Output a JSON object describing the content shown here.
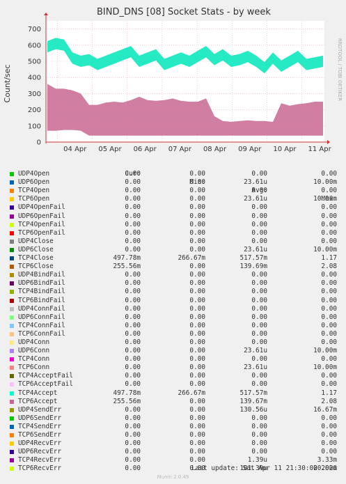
{
  "header": {
    "title": "BIND_DNS [08] Socket Stats - by week",
    "side_label": "RRDTOOL / TOBI OETIKER"
  },
  "chart_data": {
    "type": "area",
    "title": "BIND_DNS [08] Socket Stats - by week",
    "ylabel": "Count/sec",
    "ylim": [
      0,
      750
    ],
    "yticks": [
      0,
      100,
      200,
      300,
      400,
      500,
      600,
      700
    ],
    "x_ticks": [
      "04 Apr",
      "05 Apr",
      "06 Apr",
      "07 Apr",
      "08 Apr",
      "09 Apr",
      "10 Apr",
      "11 Apr"
    ],
    "grid": true,
    "colors": {
      "tcp_band": "#cc7099",
      "udp_line": "#00e6b8",
      "axis": "#cc3333",
      "grid": "#e8b0b0"
    },
    "series": [
      {
        "name": "UDP4Close",
        "color": "#00e6b8",
        "x": [
          "03 Apr 12:00",
          "03 Apr 18:00",
          "04 Apr 00:00",
          "04 Apr 06:00",
          "04 Apr 12:00",
          "04 Apr 18:00",
          "05 Apr 00:00",
          "05 Apr 06:00",
          "05 Apr 12:00",
          "05 Apr 18:00",
          "06 Apr 00:00",
          "06 Apr 06:00",
          "06 Apr 12:00",
          "06 Apr 18:00",
          "07 Apr 00:00",
          "07 Apr 06:00",
          "07 Apr 12:00",
          "07 Apr 18:00",
          "08 Apr 00:00",
          "08 Apr 06:00",
          "08 Apr 12:00",
          "08 Apr 18:00",
          "09 Apr 00:00",
          "09 Apr 06:00",
          "09 Apr 12:00",
          "09 Apr 18:00",
          "10 Apr 00:00",
          "10 Apr 06:00",
          "10 Apr 12:00",
          "10 Apr 18:00",
          "11 Apr 00:00",
          "11 Apr 06:00",
          "11 Apr 12:00",
          "11 Apr 18:00"
        ],
        "values": [
          590,
          610,
          600,
          520,
          500,
          510,
          480,
          500,
          520,
          540,
          560,
          500,
          520,
          540,
          480,
          500,
          520,
          500,
          530,
          560,
          510,
          540,
          500,
          510,
          530,
          500,
          460,
          520,
          470,
          500,
          530,
          480,
          490,
          500
        ]
      },
      {
        "name": "TCP4Close",
        "color": "#cc7099",
        "x": [
          "03 Apr 12:00",
          "03 Apr 18:00",
          "04 Apr 00:00",
          "04 Apr 06:00",
          "04 Apr 12:00",
          "04 Apr 18:00",
          "05 Apr 00:00",
          "05 Apr 06:00",
          "05 Apr 12:00",
          "05 Apr 18:00",
          "06 Apr 00:00",
          "06 Apr 06:00",
          "06 Apr 12:00",
          "06 Apr 18:00",
          "07 Apr 00:00",
          "07 Apr 06:00",
          "07 Apr 12:00",
          "07 Apr 18:00",
          "08 Apr 00:00",
          "08 Apr 06:00",
          "08 Apr 12:00",
          "08 Apr 18:00",
          "09 Apr 00:00",
          "09 Apr 06:00",
          "09 Apr 12:00",
          "09 Apr 18:00",
          "10 Apr 00:00",
          "10 Apr 06:00",
          "10 Apr 12:00",
          "10 Apr 18:00",
          "11 Apr 00:00",
          "11 Apr 06:00",
          "11 Apr 12:00",
          "11 Apr 18:00"
        ],
        "values": [
          360,
          330,
          330,
          320,
          300,
          230,
          230,
          245,
          250,
          245,
          260,
          280,
          260,
          255,
          260,
          270,
          255,
          250,
          250,
          270,
          160,
          130,
          125,
          130,
          135,
          130,
          130,
          125,
          240,
          225,
          235,
          240,
          250,
          250
        ],
        "min": [
          70,
          70,
          75,
          75,
          70,
          40,
          40,
          40,
          40,
          40,
          40,
          40,
          40,
          40,
          40,
          40,
          40,
          40,
          40,
          40,
          40,
          40,
          40,
          40,
          40,
          40,
          40,
          40,
          40,
          40,
          40,
          40,
          40,
          40
        ]
      }
    ]
  },
  "legend": {
    "headers": {
      "cur": "Cur:",
      "min": "Min:",
      "avg": "Avg:",
      "max": "Max:"
    },
    "rows": [
      {
        "name": "UDP4Open",
        "color": "#00cc00",
        "cur": "0.00",
        "min": "0.00",
        "avg": "0.00",
        "max": "0.00"
      },
      {
        "name": "UDP6Open",
        "color": "#0066b3",
        "cur": "0.00",
        "min": "0.00",
        "avg": "23.61u",
        "max": "10.00m"
      },
      {
        "name": "TCP4Open",
        "color": "#ff8000",
        "cur": "0.00",
        "min": "0.00",
        "avg": "0.00",
        "max": "0.00"
      },
      {
        "name": "TCP6Open",
        "color": "#ffcc00",
        "cur": "0.00",
        "min": "0.00",
        "avg": "23.61u",
        "max": "10.00m"
      },
      {
        "name": "UDP4OpenFail",
        "color": "#330099",
        "cur": "0.00",
        "min": "0.00",
        "avg": "0.00",
        "max": "0.00"
      },
      {
        "name": "UDP6OpenFail",
        "color": "#990099",
        "cur": "0.00",
        "min": "0.00",
        "avg": "0.00",
        "max": "0.00"
      },
      {
        "name": "TCP4OpenFail",
        "color": "#ccff00",
        "cur": "0.00",
        "min": "0.00",
        "avg": "0.00",
        "max": "0.00"
      },
      {
        "name": "TCP6OpenFail",
        "color": "#ff0000",
        "cur": "0.00",
        "min": "0.00",
        "avg": "0.00",
        "max": "0.00"
      },
      {
        "name": "UDP4Close",
        "color": "#808080",
        "cur": "0.00",
        "min": "0.00",
        "avg": "0.00",
        "max": "0.00"
      },
      {
        "name": "UDP6Close",
        "color": "#008f00",
        "cur": "0.00",
        "min": "0.00",
        "avg": "23.61u",
        "max": "10.00m"
      },
      {
        "name": "TCP4Close",
        "color": "#00487d",
        "cur": "497.78m",
        "min": "266.67m",
        "avg": "517.57m",
        "max": "1.17"
      },
      {
        "name": "TCP6Close",
        "color": "#b35a00",
        "cur": "255.56m",
        "min": "0.00",
        "avg": "139.69m",
        "max": "2.08"
      },
      {
        "name": "UDP4BindFail",
        "color": "#b38f00",
        "cur": "0.00",
        "min": "0.00",
        "avg": "0.00",
        "max": "0.00"
      },
      {
        "name": "UDP6BindFail",
        "color": "#6b006b",
        "cur": "0.00",
        "min": "0.00",
        "avg": "0.00",
        "max": "0.00"
      },
      {
        "name": "TCP4BindFail",
        "color": "#8fb300",
        "cur": "0.00",
        "min": "0.00",
        "avg": "0.00",
        "max": "0.00"
      },
      {
        "name": "TCP6BindFail",
        "color": "#b30000",
        "cur": "0.00",
        "min": "0.00",
        "avg": "0.00",
        "max": "0.00"
      },
      {
        "name": "UDP4ConnFail",
        "color": "#bebebe",
        "cur": "0.00",
        "min": "0.00",
        "avg": "0.00",
        "max": "0.00"
      },
      {
        "name": "UDP6ConnFail",
        "color": "#80ff80",
        "cur": "0.00",
        "min": "0.00",
        "avg": "0.00",
        "max": "0.00"
      },
      {
        "name": "TCP4ConnFail",
        "color": "#80c9ff",
        "cur": "0.00",
        "min": "0.00",
        "avg": "0.00",
        "max": "0.00"
      },
      {
        "name": "TCP6ConnFail",
        "color": "#ffc080",
        "cur": "0.00",
        "min": "0.00",
        "avg": "0.00",
        "max": "0.00"
      },
      {
        "name": "UDP4Conn",
        "color": "#ffe680",
        "cur": "0.00",
        "min": "0.00",
        "avg": "0.00",
        "max": "0.00"
      },
      {
        "name": "UDP6Conn",
        "color": "#aa80ff",
        "cur": "0.00",
        "min": "0.00",
        "avg": "23.61u",
        "max": "10.00m"
      },
      {
        "name": "TCP4Conn",
        "color": "#ee00cc",
        "cur": "0.00",
        "min": "0.00",
        "avg": "0.00",
        "max": "0.00"
      },
      {
        "name": "TCP6Conn",
        "color": "#ff8080",
        "cur": "0.00",
        "min": "0.00",
        "avg": "23.61u",
        "max": "10.00m"
      },
      {
        "name": "TCP4AcceptFail",
        "color": "#666600",
        "cur": "0.00",
        "min": "0.00",
        "avg": "0.00",
        "max": "0.00"
      },
      {
        "name": "TCP6AcceptFail",
        "color": "#ffbfff",
        "cur": "0.00",
        "min": "0.00",
        "avg": "0.00",
        "max": "0.00"
      },
      {
        "name": "TCP4Accept",
        "color": "#00ffcc",
        "cur": "497.78m",
        "min": "266.67m",
        "avg": "517.57m",
        "max": "1.17"
      },
      {
        "name": "TCP6Accept",
        "color": "#cc6699",
        "cur": "255.56m",
        "min": "0.00",
        "avg": "139.67m",
        "max": "2.08"
      },
      {
        "name": "UDP4SendErr",
        "color": "#999900",
        "cur": "0.00",
        "min": "0.00",
        "avg": "130.56u",
        "max": "16.67m"
      },
      {
        "name": "UDP6SendErr",
        "color": "#00cc00",
        "cur": "0.00",
        "min": "0.00",
        "avg": "0.00",
        "max": "0.00"
      },
      {
        "name": "TCP4SendErr",
        "color": "#0066b3",
        "cur": "0.00",
        "min": "0.00",
        "avg": "0.00",
        "max": "0.00"
      },
      {
        "name": "TCP6SendErr",
        "color": "#ff8000",
        "cur": "0.00",
        "min": "0.00",
        "avg": "0.00",
        "max": "0.00"
      },
      {
        "name": "UDP4RecvErr",
        "color": "#ffcc00",
        "cur": "0.00",
        "min": "0.00",
        "avg": "0.00",
        "max": "0.00"
      },
      {
        "name": "UDP6RecvErr",
        "color": "#330099",
        "cur": "0.00",
        "min": "0.00",
        "avg": "0.00",
        "max": "0.00"
      },
      {
        "name": "TCP4RecvErr",
        "color": "#990099",
        "cur": "0.00",
        "min": "0.00",
        "avg": "1.39u",
        "max": "3.33m"
      },
      {
        "name": "TCP6RecvErr",
        "color": "#ccff00",
        "cur": "0.00",
        "min": "0.00",
        "avg": "101.39u",
        "max": "20.00m"
      }
    ]
  },
  "footer": {
    "last_update": "Last update: Sat Apr 11 21:30:00 2020",
    "munin": "Munin 2.0.49"
  }
}
